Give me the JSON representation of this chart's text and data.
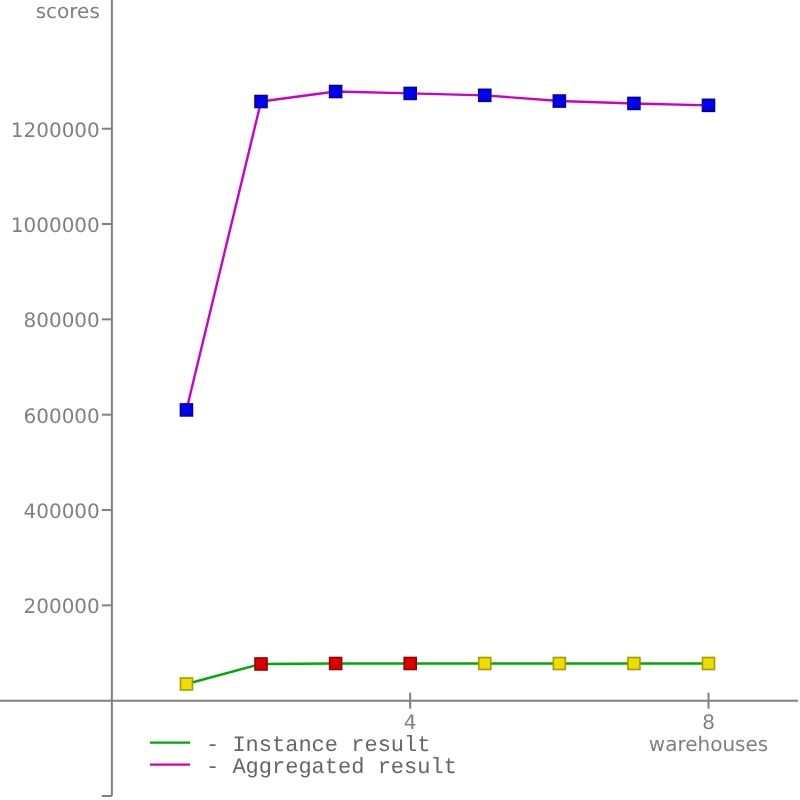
{
  "chart_data": {
    "type": "line",
    "x": [
      1,
      2,
      3,
      4,
      5,
      6,
      7,
      8
    ],
    "series": [
      {
        "name": "- Instance result",
        "color": "#00aa00",
        "colors": [
          "#eedd00",
          "#dd0000",
          "#dd0000",
          "#dd0000",
          "#eedd00",
          "#eedd00",
          "#eedd00",
          "#eedd00"
        ],
        "values": [
          35000,
          77000,
          78000,
          78000,
          78000,
          78000,
          78000,
          78000
        ]
      },
      {
        "name": "- Aggregated result",
        "color": "#cc00cc",
        "colors": [
          "#0000ee",
          "#0000ee",
          "#0000ee",
          "#0000ee",
          "#0000ee",
          "#0000ee",
          "#0000ee",
          "#0000ee"
        ],
        "values": [
          610000,
          1257000,
          1278000,
          1274000,
          1270000,
          1258000,
          1253000,
          1249000
        ]
      }
    ],
    "xlabel": "warehouses",
    "ylabel": "scores",
    "xlim": [
      -1.5,
      9.2
    ],
    "xticks": [
      4,
      8
    ],
    "ylim": [
      -200000,
      1470000
    ],
    "yticks": [
      {
        "value": -200000,
        "label": null
      },
      200000,
      400000,
      600000,
      800000,
      1000000,
      1200000
    ],
    "marker": "square",
    "line_style": "solid",
    "legend": "bottom left",
    "grid": false
  }
}
